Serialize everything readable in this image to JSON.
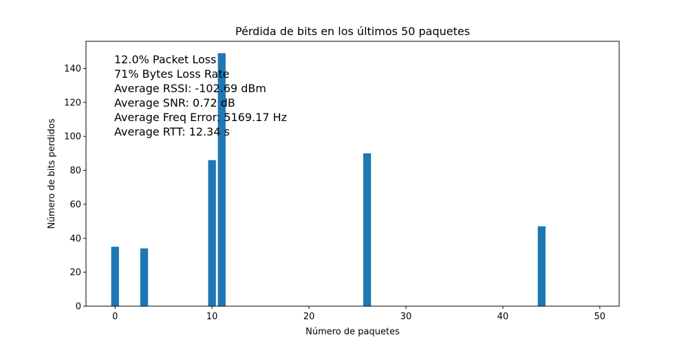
{
  "chart_data": {
    "type": "bar",
    "title": "Pérdida de bits en los últimos 50 paquetes",
    "xlabel": "Número de paquetes",
    "ylabel": "Número de bits perdidos",
    "xlim": [
      -3,
      52
    ],
    "ylim": [
      0,
      156
    ],
    "xticks": [
      0,
      10,
      20,
      30,
      40,
      50
    ],
    "yticks": [
      0,
      20,
      40,
      60,
      80,
      100,
      120,
      140
    ],
    "bar_color": "#1f77b4",
    "bars": [
      {
        "x": 0,
        "value": 35
      },
      {
        "x": 3,
        "value": 34
      },
      {
        "x": 10,
        "value": 86
      },
      {
        "x": 11,
        "value": 149
      },
      {
        "x": 26,
        "value": 90
      },
      {
        "x": 44,
        "value": 47
      }
    ],
    "annotations": [
      "12.0% Packet Loss",
      "71% Bytes Loss Rate",
      "Average RSSI: -102.69 dBm",
      "Average SNR: 0.72 dB",
      "Average Freq Error: 5169.17 Hz",
      "Average RTT: 12.34 s"
    ],
    "grid": false
  }
}
